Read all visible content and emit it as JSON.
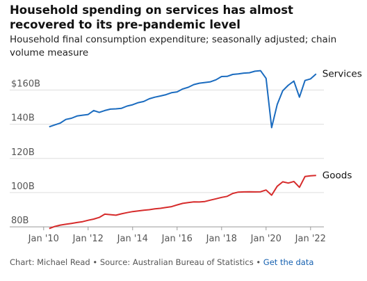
{
  "chart_data": {
    "type": "line",
    "title": "Household spending on services has almost recovered to its pre-pandemic level",
    "subtitle": "Household final consumption expenditure; seasonally adjusted; chain volume measure",
    "source": "Chart: Michael Read • Source: Australian Bureau of Statistics •",
    "link": "Get the data",
    "x": [
      2010.25,
      2010.5,
      2010.75,
      2011,
      2011.25,
      2011.5,
      2011.75,
      2012,
      2012.25,
      2012.5,
      2012.75,
      2013,
      2013.25,
      2013.5,
      2013.75,
      2014,
      2014.25,
      2014.5,
      2014.75,
      2015,
      2015.25,
      2015.5,
      2015.75,
      2016,
      2016.25,
      2016.5,
      2016.75,
      2017,
      2017.25,
      2017.5,
      2017.75,
      2018,
      2018.25,
      2018.5,
      2018.75,
      2019,
      2019.25,
      2019.5,
      2019.75,
      2020,
      2020.25,
      2020.5,
      2020.75,
      2021,
      2021.25,
      2021.5,
      2021.75,
      2022,
      2022.25
    ],
    "series": [
      {
        "name": "Services",
        "color": "#1a6bbf",
        "values": [
          138.5,
          139.6,
          140.7,
          142.8,
          143.5,
          144.8,
          145.3,
          145.7,
          148.0,
          146.9,
          148.0,
          148.8,
          149.0,
          149.3,
          150.6,
          151.4,
          152.6,
          153.3,
          154.9,
          155.8,
          156.5,
          157.3,
          158.4,
          158.9,
          160.6,
          161.6,
          163.2,
          164.0,
          164.4,
          164.8,
          166.0,
          167.9,
          168.0,
          169.1,
          169.4,
          169.9,
          170.1,
          171.0,
          171.3,
          166.8,
          138.0,
          151.5,
          159.6,
          162.8,
          165.2,
          155.8,
          165.6,
          166.5,
          169.4
        ]
      },
      {
        "name": "Goods",
        "color": "#d62b2b",
        "values": [
          79.0,
          80.2,
          81.0,
          81.5,
          82.0,
          82.5,
          83.0,
          83.8,
          84.5,
          85.5,
          87.4,
          87.1,
          86.8,
          87.6,
          88.3,
          88.9,
          89.3,
          89.7,
          90.0,
          90.5,
          90.8,
          91.3,
          91.8,
          92.8,
          93.7,
          94.2,
          94.6,
          94.5,
          94.8,
          95.6,
          96.4,
          97.2,
          97.8,
          99.5,
          100.3,
          100.4,
          100.5,
          100.4,
          100.5,
          101.5,
          98.5,
          103.7,
          106.3,
          105.6,
          106.5,
          103.1,
          109.4,
          109.8,
          110.0
        ]
      }
    ],
    "xlim": [
      2009.85,
      2022.6
    ],
    "xticks": [
      {
        "value": 2010,
        "label": "Jan '10"
      },
      {
        "value": 2012,
        "label": "Jan '12"
      },
      {
        "value": 2014,
        "label": "Jan '14"
      },
      {
        "value": 2016,
        "label": "Jan '16"
      },
      {
        "value": 2018,
        "label": "Jan '18"
      },
      {
        "value": 2020,
        "label": "Jan '20"
      },
      {
        "value": 2022,
        "label": "Jan '22"
      }
    ],
    "ylim": [
      78,
      174
    ],
    "yticks": [
      {
        "value": 80,
        "label": "80B"
      },
      {
        "value": 100,
        "label": "100B"
      },
      {
        "value": 120,
        "label": "120B"
      },
      {
        "value": 140,
        "label": "140B"
      },
      {
        "value": 160,
        "label": "$160B"
      }
    ],
    "grid": true
  }
}
